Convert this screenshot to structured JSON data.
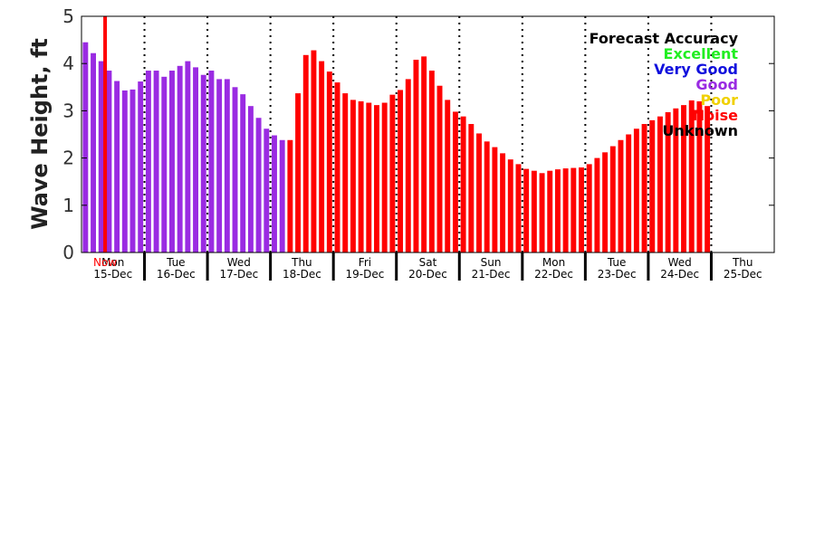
{
  "chart_data": {
    "type": "bar",
    "ylabel": "Wave Height, ft",
    "ylim": [
      0,
      5
    ],
    "yticks": [
      "0",
      "1",
      "2",
      "3",
      "4",
      "5"
    ],
    "days": [
      {
        "day": "Mon",
        "date": "15-Dec"
      },
      {
        "day": "Tue",
        "date": "16-Dec"
      },
      {
        "day": "Wed",
        "date": "17-Dec"
      },
      {
        "day": "Thu",
        "date": "18-Dec"
      },
      {
        "day": "Fri",
        "date": "19-Dec"
      },
      {
        "day": "Sat",
        "date": "20-Dec"
      },
      {
        "day": "Sun",
        "date": "21-Dec"
      },
      {
        "day": "Mon",
        "date": "22-Dec"
      },
      {
        "day": "Tue",
        "date": "23-Dec"
      },
      {
        "day": "Wed",
        "date": "24-Dec"
      },
      {
        "day": "Thu",
        "date": "25-Dec"
      }
    ],
    "now_label": "Now",
    "now_hours": 9,
    "bar_interval_hours": 3,
    "start_hour": 0,
    "legend": {
      "title": "Forecast Accuracy",
      "items": [
        {
          "label": "Excellent",
          "color": "#22ee22"
        },
        {
          "label": "Very Good",
          "color": "#1010dd"
        },
        {
          "label": "Good",
          "color": "#9a2be2"
        },
        {
          "label": "Poor",
          "color": "#f0d000"
        },
        {
          "label": "Noise",
          "color": "#ff0000"
        },
        {
          "label": "Unknown",
          "color": "#000000"
        }
      ]
    },
    "colors": {
      "Good": "#9a2be2",
      "Noise": "#ff0000",
      "now_line": "#ff0000"
    },
    "series": [
      {
        "name": "Good",
        "values": [
          4.45,
          4.22,
          4.05,
          3.85,
          3.63,
          3.43,
          3.45,
          3.62,
          3.85,
          3.85,
          3.72,
          3.85,
          3.95,
          4.05,
          3.92,
          3.76,
          3.85,
          3.67,
          3.67,
          3.5,
          3.35,
          3.1,
          2.85,
          2.62,
          2.48,
          2.38
        ]
      },
      {
        "name": "Noise",
        "values": [
          2.38,
          3.37,
          4.18,
          4.28,
          4.05,
          3.83,
          3.6,
          3.37,
          3.23,
          3.2,
          3.17,
          3.12,
          3.17,
          3.34,
          3.44,
          3.67,
          4.08,
          4.15,
          3.85,
          3.53,
          3.23,
          2.98,
          2.88,
          2.72,
          2.52,
          2.35,
          2.23,
          2.1,
          1.97,
          1.87,
          1.77,
          1.73,
          1.68,
          1.73,
          1.76,
          1.78,
          1.79,
          1.8,
          1.87,
          2.0,
          2.12,
          2.25,
          2.38,
          2.5,
          2.62,
          2.72,
          2.8,
          2.88,
          2.97,
          3.05,
          3.12,
          3.22,
          3.2,
          3.1
        ]
      }
    ]
  }
}
